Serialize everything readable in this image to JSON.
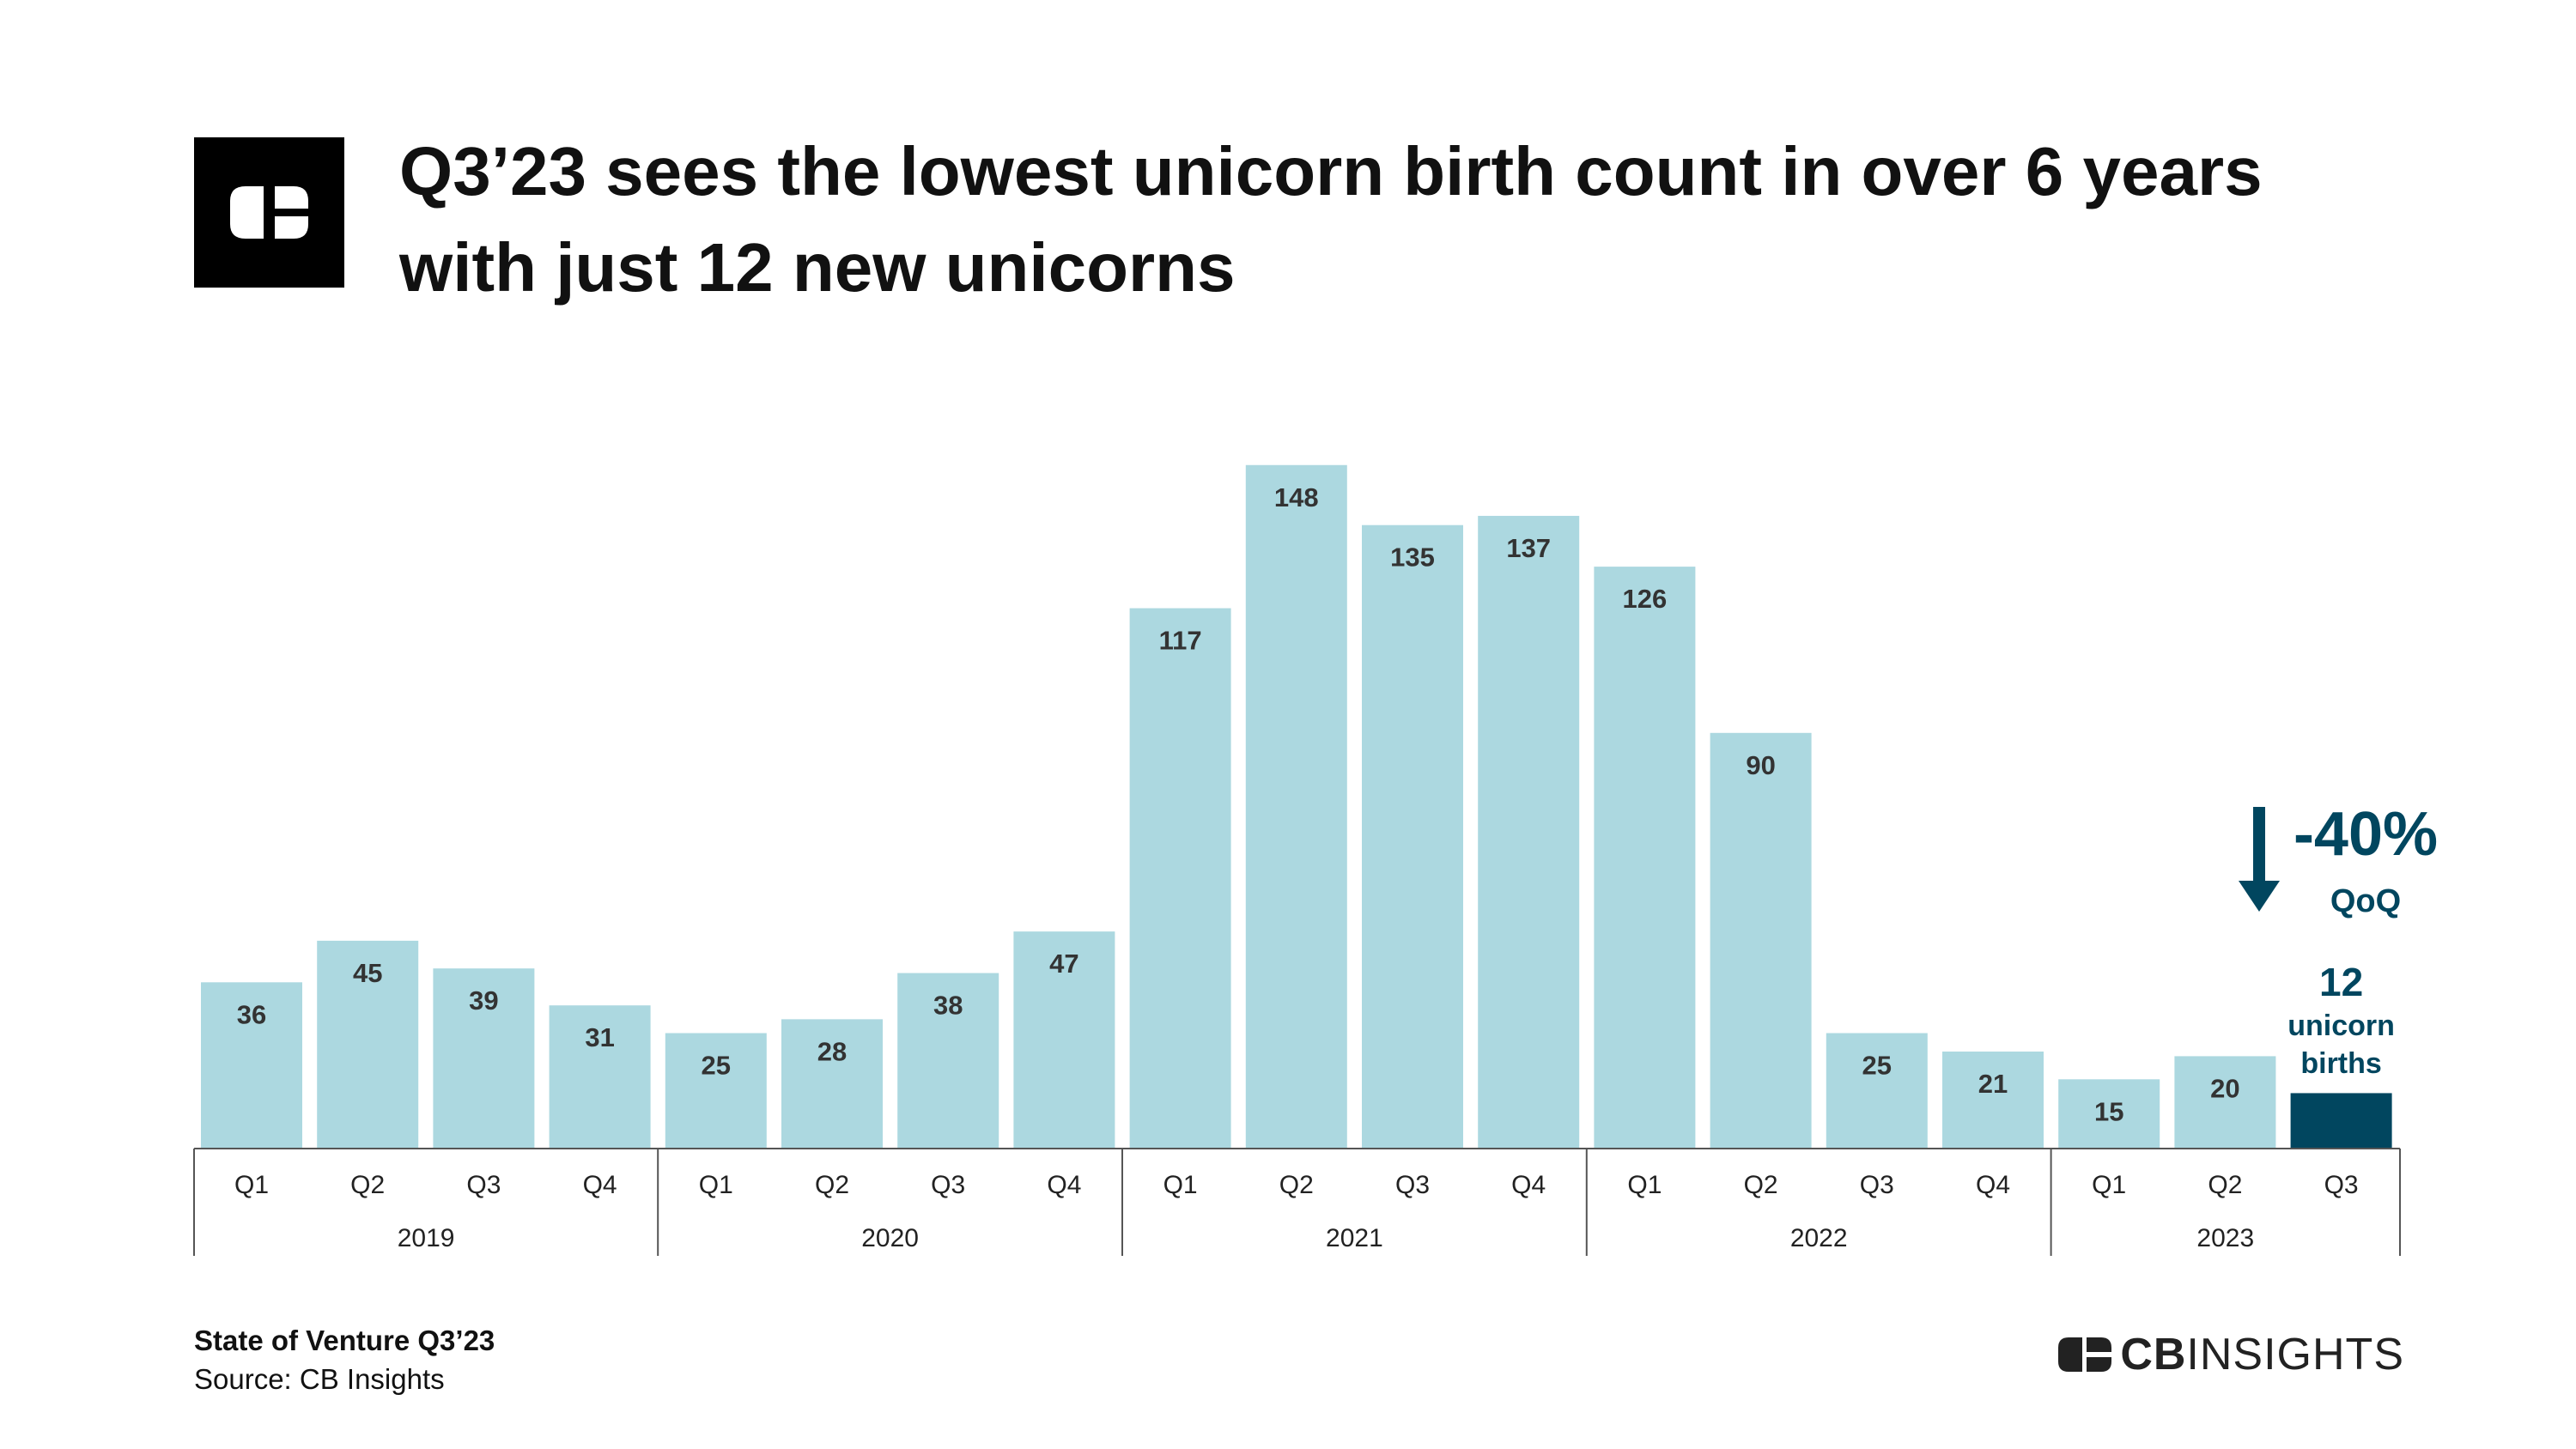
{
  "header": {
    "title_line1": "Q3’23 sees the lowest unicorn birth count in over 6 years",
    "title_line2": "with just 12 new unicorns",
    "logo": "cb-insights-logo"
  },
  "colors": {
    "bar": "#acd8e0",
    "highlight": "#01465f",
    "text": "#333333",
    "axis": "#555555"
  },
  "chart_data": {
    "type": "bar",
    "title": "Q3’23 sees the lowest unicorn birth count in over 6 years with just 12 new unicorns",
    "categories": [
      {
        "quarter": "Q1",
        "year": "2019"
      },
      {
        "quarter": "Q2",
        "year": "2019"
      },
      {
        "quarter": "Q3",
        "year": "2019"
      },
      {
        "quarter": "Q4",
        "year": "2019"
      },
      {
        "quarter": "Q1",
        "year": "2020"
      },
      {
        "quarter": "Q2",
        "year": "2020"
      },
      {
        "quarter": "Q3",
        "year": "2020"
      },
      {
        "quarter": "Q4",
        "year": "2020"
      },
      {
        "quarter": "Q1",
        "year": "2021"
      },
      {
        "quarter": "Q2",
        "year": "2021"
      },
      {
        "quarter": "Q3",
        "year": "2021"
      },
      {
        "quarter": "Q4",
        "year": "2021"
      },
      {
        "quarter": "Q1",
        "year": "2022"
      },
      {
        "quarter": "Q2",
        "year": "2022"
      },
      {
        "quarter": "Q3",
        "year": "2022"
      },
      {
        "quarter": "Q4",
        "year": "2022"
      },
      {
        "quarter": "Q1",
        "year": "2023"
      },
      {
        "quarter": "Q2",
        "year": "2023"
      },
      {
        "quarter": "Q3",
        "year": "2023"
      }
    ],
    "years": [
      "2019",
      "2020",
      "2021",
      "2022",
      "2023"
    ],
    "values": [
      36,
      45,
      39,
      31,
      25,
      28,
      38,
      47,
      117,
      148,
      135,
      137,
      126,
      90,
      25,
      21,
      15,
      20,
      12
    ],
    "ylim": [
      0,
      150
    ],
    "highlight_index": 18,
    "annotation": {
      "change": "-40%",
      "change_label": "QoQ",
      "value": "12",
      "label_line1": "unicorn",
      "label_line2": "births",
      "arrow": "down-arrow-icon"
    },
    "grid": false,
    "xlabel": "",
    "ylabel": ""
  },
  "footer": {
    "title": "State of Venture Q3’23",
    "source": "Source: CB Insights",
    "brand_bold": "CB",
    "brand_rest": "INSIGHTS"
  }
}
